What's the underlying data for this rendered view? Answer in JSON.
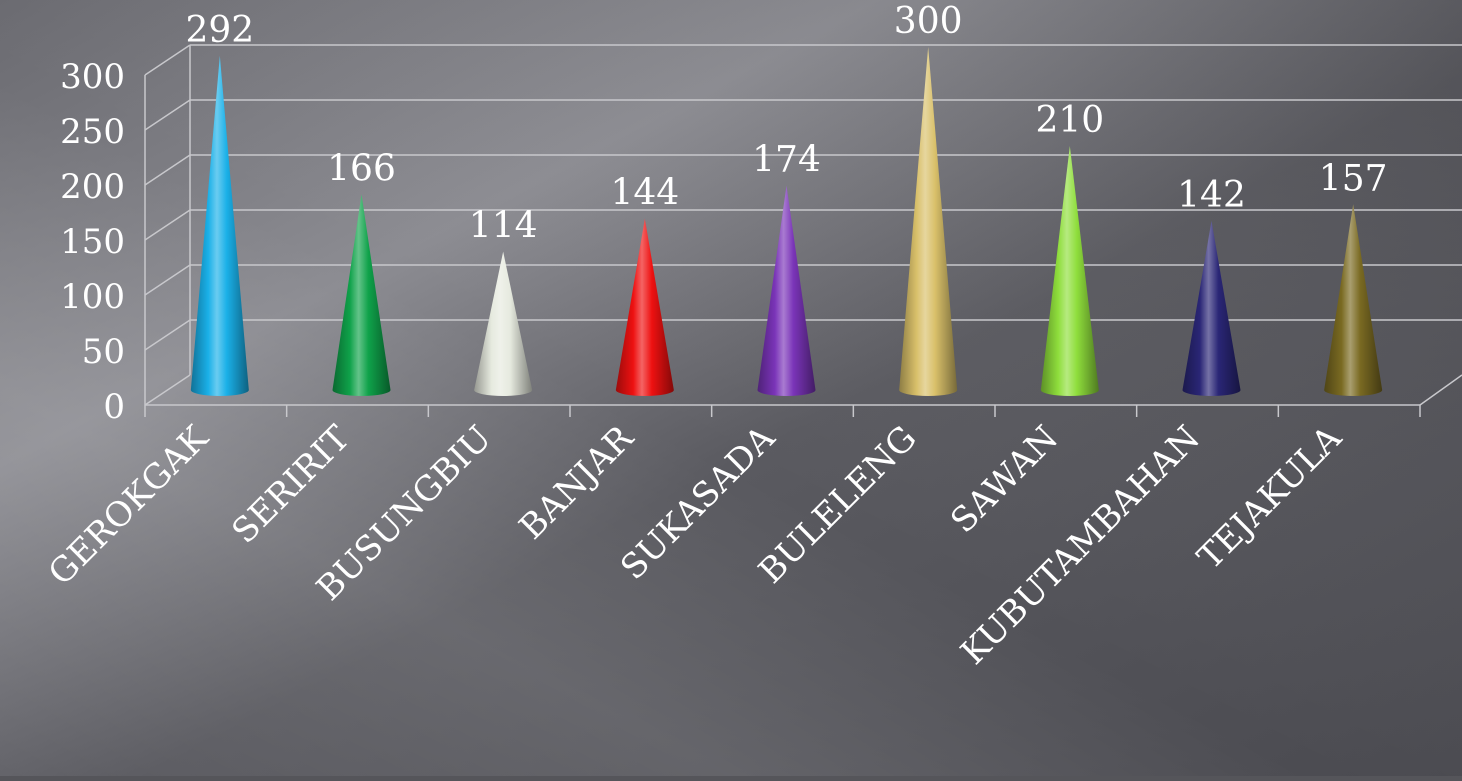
{
  "chart_data": {
    "type": "bar",
    "bar_shape": "3d-cone",
    "categories": [
      "GEROKGAK",
      "SERIRIT",
      "BUSUNGBIU",
      "BANJAR",
      "SUKASADA",
      "BULELENG",
      "SAWAN",
      "KUBUTAMBAHAN",
      "TEJAKULA"
    ],
    "values": [
      292,
      166,
      114,
      144,
      174,
      300,
      210,
      142,
      157
    ],
    "data_labels": [
      "292",
      "166",
      "114",
      "144",
      "174",
      "300",
      "210",
      "142",
      "157"
    ],
    "colors": [
      "#1ab0e8",
      "#0fa24a",
      "#e6eadf",
      "#ee1111",
      "#7a34b8",
      "#d9c06a",
      "#8fde3c",
      "#2a2676",
      "#7a6a22"
    ],
    "yticks": [
      "0",
      "50",
      "100",
      "150",
      "200",
      "250",
      "300"
    ],
    "ylim": [
      0,
      300
    ],
    "grid": true,
    "legend": "none",
    "background": "#55555a",
    "text_color": "#ffffff",
    "gridline_color": "#c8c8cc"
  }
}
